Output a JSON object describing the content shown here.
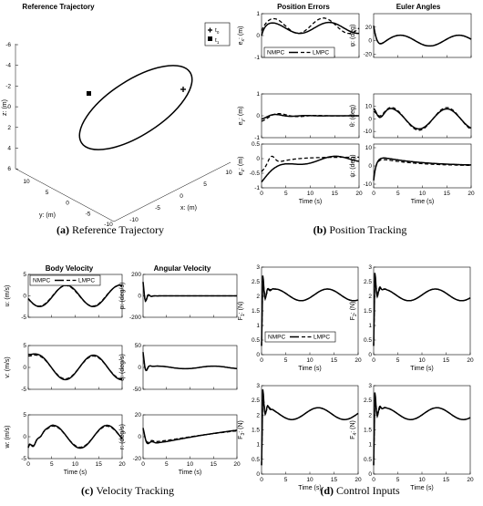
{
  "chart_data": [
    {
      "id": "ref",
      "type": "line",
      "title": "Reference Trajectory",
      "caption": {
        "letter": "(a)",
        "text": "Reference Trajectory"
      },
      "xlabel": "x: (m)",
      "ylabel": "y: (m)",
      "zlabel": "z: (m)",
      "x_ticks": [
        "-10",
        "-5",
        "0",
        "5",
        "10"
      ],
      "y_ticks": [
        "-10",
        "-5",
        "0",
        "5",
        "10"
      ],
      "z_ticks": [
        "-6",
        "-4",
        "-2",
        "0",
        "2",
        "4",
        "6"
      ],
      "legend": [
        "t0",
        "t1"
      ],
      "legend_sub": [
        "0",
        "1"
      ],
      "series": [
        {
          "shape": "ellipse",
          "description": "closed circular reference"
        }
      ]
    },
    {
      "id": "pos",
      "caption": {
        "letter": "(b)",
        "text": "Position Tracking"
      },
      "column_titles": [
        "Position Errors",
        "Euler Angles"
      ],
      "xlabel": "Time (s)",
      "x_ticks": [
        "0",
        "5",
        "10",
        "15",
        "20"
      ],
      "legend": [
        "NMPC",
        "LMPC"
      ],
      "panels": [
        {
          "ylabel": "e_x: (m)",
          "ylim": [
            -1,
            1
          ],
          "yticks": [
            "-1",
            "0",
            "1"
          ]
        },
        {
          "ylabel": "φ: (deg)",
          "ylim": [
            -25,
            40
          ],
          "yticks": [
            "-20",
            "0",
            "20"
          ]
        },
        {
          "ylabel": "e_y: (m)",
          "ylim": [
            -1,
            1
          ],
          "yticks": [
            "-1",
            "0",
            "1"
          ]
        },
        {
          "ylabel": "θ: (deg)",
          "ylim": [
            -15,
            20
          ],
          "yticks": [
            "-10",
            "0",
            "10"
          ]
        },
        {
          "ylabel": "e_z: (m)",
          "ylim": [
            -1,
            0.5
          ],
          "yticks": [
            "-1",
            "-0.5",
            "0",
            "0.5"
          ]
        },
        {
          "ylabel": "ψ: (deg)",
          "ylim": [
            -12,
            12
          ],
          "yticks": [
            "-10",
            "0",
            "10"
          ]
        }
      ]
    },
    {
      "id": "vel",
      "caption": {
        "letter": "(c)",
        "text": "Velocity Tracking"
      },
      "column_titles": [
        "Body Velocity",
        "Angular Velocity"
      ],
      "xlabel": "Time (s)",
      "x_ticks": [
        "0",
        "5",
        "10",
        "15",
        "20"
      ],
      "legend": [
        "NMPC",
        "LMPC"
      ],
      "panels": [
        {
          "ylabel": "u: (m/s)",
          "ylim": [
            -5,
            5
          ],
          "yticks": [
            "-5",
            "0",
            "5"
          ]
        },
        {
          "ylabel": "p: (deg/s)",
          "ylim": [
            -200,
            200
          ],
          "yticks": [
            "-200",
            "0",
            "200"
          ]
        },
        {
          "ylabel": "v: (m/s)",
          "ylim": [
            -5,
            5
          ],
          "yticks": [
            "-5",
            "0",
            "5"
          ]
        },
        {
          "ylabel": "q: (deg/s)",
          "ylim": [
            -50,
            50
          ],
          "yticks": [
            "-50",
            "0",
            "50"
          ]
        },
        {
          "ylabel": "w: (m/s)",
          "ylim": [
            -5,
            5
          ],
          "yticks": [
            "-5",
            "0",
            "5"
          ]
        },
        {
          "ylabel": "r: (deg/s)",
          "ylim": [
            -20,
            20
          ],
          "yticks": [
            "-20",
            "0",
            "20"
          ]
        }
      ]
    },
    {
      "id": "ctl",
      "caption": {
        "letter": "(d)",
        "text": "Control Inputs"
      },
      "xlabel": "Time (s)",
      "x_ticks": [
        "0",
        "5",
        "10",
        "15",
        "20"
      ],
      "legend": [
        "NMPC",
        "LMPC"
      ],
      "panels": [
        {
          "ylabel": "F_1: (N)",
          "ylim": [
            0,
            3
          ],
          "yticks": [
            "0",
            "0.5",
            "1",
            "1.5",
            "2",
            "2.5",
            "3"
          ]
        },
        {
          "ylabel": "F_2: (N)",
          "ylim": [
            0,
            3
          ],
          "yticks": [
            "0",
            "0.5",
            "1",
            "1.5",
            "2",
            "2.5",
            "3"
          ]
        },
        {
          "ylabel": "F_3: (N)",
          "ylim": [
            0,
            3
          ],
          "yticks": [
            "0",
            "0.5",
            "1",
            "1.5",
            "2",
            "2.5",
            "3"
          ]
        },
        {
          "ylabel": "F_4: (N)",
          "ylim": [
            0,
            3
          ],
          "yticks": [
            "0",
            "0.5",
            "1",
            "1.5",
            "2",
            "2.5",
            "3"
          ]
        }
      ]
    }
  ]
}
